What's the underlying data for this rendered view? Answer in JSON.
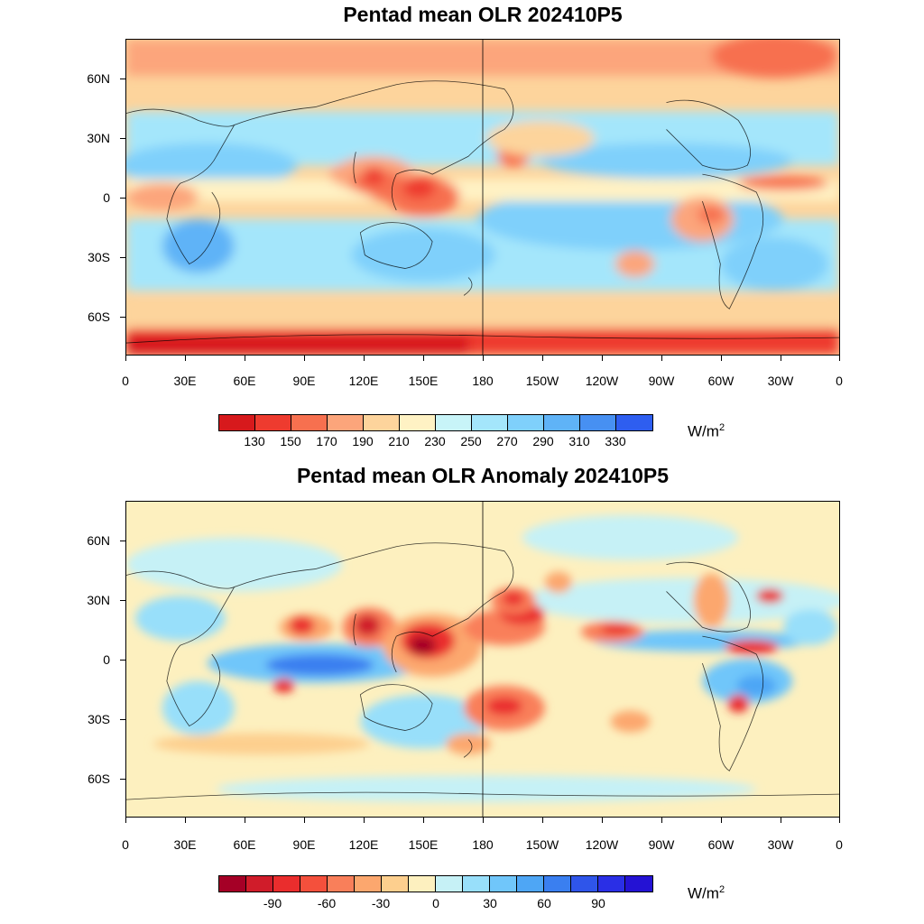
{
  "panels": [
    {
      "title": "Pentad mean OLR 202410P5",
      "lat_labels": [
        "60N",
        "30N",
        "0",
        "30S",
        "60S"
      ],
      "lon_labels": [
        "0",
        "30E",
        "60E",
        "90E",
        "120E",
        "150E",
        "180",
        "150W",
        "120W",
        "90W",
        "60W",
        "30W",
        "0"
      ],
      "colorbar": {
        "colors": [
          "#d7191c",
          "#ee3b2f",
          "#f7704f",
          "#fca57b",
          "#fdd49c",
          "#fff2c4",
          "#c8f4f8",
          "#a4e6fb",
          "#7fd0fb",
          "#5fb3f7",
          "#4790f2",
          "#2e5ef0"
        ],
        "labels": [
          "130",
          "150",
          "170",
          "190",
          "210",
          "230",
          "250",
          "270",
          "290",
          "310",
          "330"
        ],
        "unit": "W/m",
        "unit_sup": "2"
      }
    },
    {
      "title": "Pentad mean OLR Anomaly 202410P5",
      "lat_labels": [
        "60N",
        "30N",
        "0",
        "30S",
        "60S"
      ],
      "lon_labels": [
        "0",
        "30E",
        "60E",
        "90E",
        "120E",
        "150E",
        "180",
        "150W",
        "120W",
        "90W",
        "60W",
        "30W",
        "0"
      ],
      "colorbar": {
        "colors": [
          "#a50026",
          "#d01c2a",
          "#ea2d2d",
          "#f4503c",
          "#f97f5a",
          "#fca76e",
          "#fdcf8e",
          "#fdf0bf",
          "#c6f1f6",
          "#98dffa",
          "#70c6fa",
          "#4ea6f5",
          "#3a7ff0",
          "#2f55ea",
          "#2a2fe6",
          "#2412d4"
        ],
        "labels": [
          "-90",
          "-60",
          "-30",
          "0",
          "30",
          "60",
          "90"
        ],
        "unit": "W/m",
        "unit_sup": "2"
      }
    }
  ]
}
